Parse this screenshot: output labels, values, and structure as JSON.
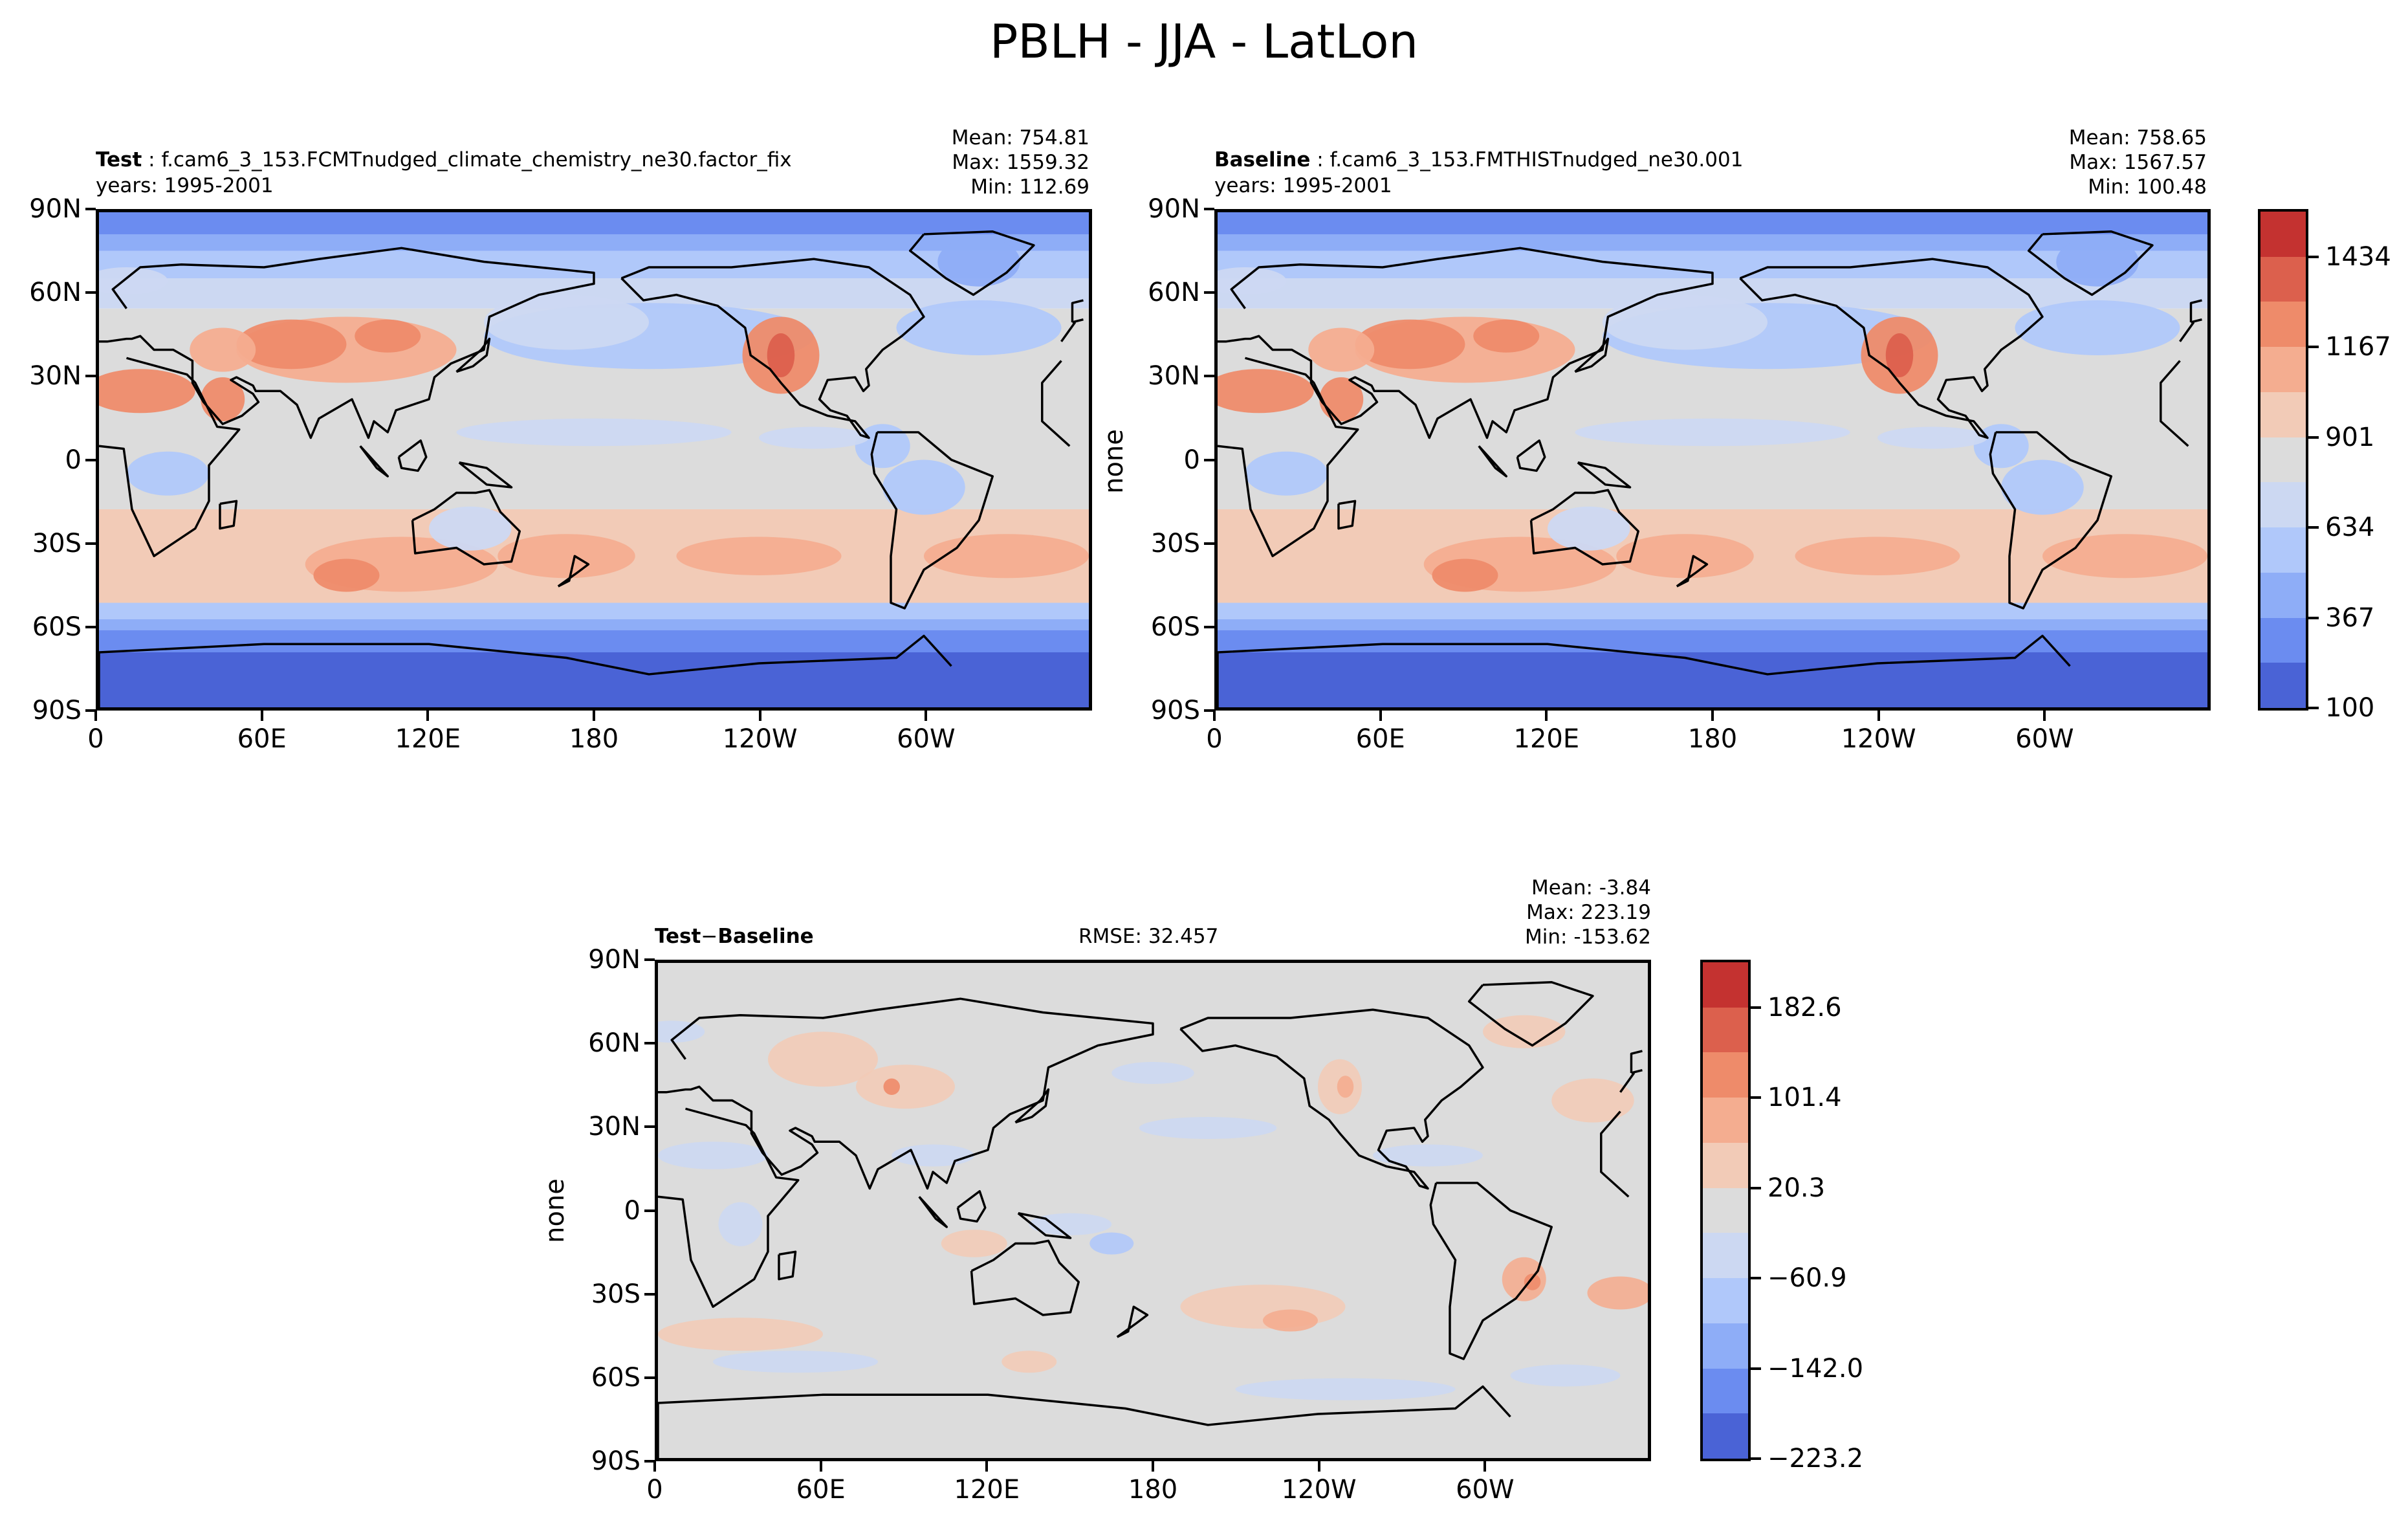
{
  "figure": {
    "title": "PBLH - JJA - LatLon"
  },
  "panels": {
    "test": {
      "label": "Test",
      "case": "f.cam6_3_153.FCMTnudged_climate_chemistry_ne30.factor_fix",
      "years": "years: 1995-2001",
      "mean": "Mean: 754.81",
      "max": "Max: 1559.32",
      "min": "Min: 112.69"
    },
    "baseline": {
      "label": "Baseline",
      "case": "f.cam6_3_153.FMTHISTnudged_ne30.001",
      "years": "years: 1995-2001",
      "mean": "Mean: 758.65",
      "max": "Max: 1567.57",
      "min": "Min: 100.48",
      "ylabel": "none"
    },
    "diff": {
      "label_a": "Test",
      "label_sep": "−",
      "label_b": "Baseline",
      "rmse": "RMSE: 32.457",
      "mean": "Mean: -3.84",
      "max": "Max: 223.19",
      "min": "Min: -153.62",
      "ylabel": "none"
    }
  },
  "axes": {
    "lat_ticks": [
      "90N",
      "60N",
      "30N",
      "0",
      "30S",
      "60S",
      "90S"
    ],
    "lon_ticks": [
      "0",
      "60E",
      "120E",
      "180",
      "120W",
      "60W"
    ]
  },
  "chart_data": [
    {
      "type": "heatmap",
      "name": "Test",
      "variable": "PBLH",
      "season": "JJA",
      "projection": "LatLon",
      "lat_range": [
        -90,
        90
      ],
      "lon_range": [
        0,
        360
      ],
      "mean": 754.81,
      "max": 1559.32,
      "min": 112.69
    },
    {
      "type": "heatmap",
      "name": "Baseline",
      "variable": "PBLH",
      "season": "JJA",
      "projection": "LatLon",
      "lat_range": [
        -90,
        90
      ],
      "lon_range": [
        0,
        360
      ],
      "mean": 758.65,
      "max": 1567.57,
      "min": 100.48
    },
    {
      "type": "heatmap",
      "name": "Test − Baseline",
      "variable": "PBLH",
      "season": "JJA",
      "projection": "LatLon",
      "lat_range": [
        -90,
        90
      ],
      "lon_range": [
        0,
        360
      ],
      "mean": -3.84,
      "max": 223.19,
      "min": -153.62,
      "rmse": 32.457
    }
  ],
  "colorbars": {
    "main": {
      "tick_labels": [
        "100",
        "367",
        "634",
        "901",
        "1167",
        "1434"
      ],
      "range": [
        100,
        1567
      ],
      "levels": 11,
      "colors": [
        "#4a63d6",
        "#6b8cf0",
        "#8eadf7",
        "#b0c8fa",
        "#ccd8f2",
        "#dcdcdc",
        "#f2cbb7",
        "#f4ad90",
        "#ee8b6a",
        "#dc604d",
        "#c43230"
      ]
    },
    "diff": {
      "tick_labels": [
        "−223.2",
        "−142.0",
        "−60.9",
        "20.3",
        "101.4",
        "182.6"
      ],
      "range": [
        -223.2,
        223.2
      ],
      "levels": 11,
      "colors": [
        "#4a63d6",
        "#6b8cf0",
        "#8eadf7",
        "#b0c8fa",
        "#ccd8f2",
        "#dcdcdc",
        "#f2cbb7",
        "#f4ad90",
        "#ee8b6a",
        "#dc604d",
        "#c43230"
      ]
    }
  }
}
